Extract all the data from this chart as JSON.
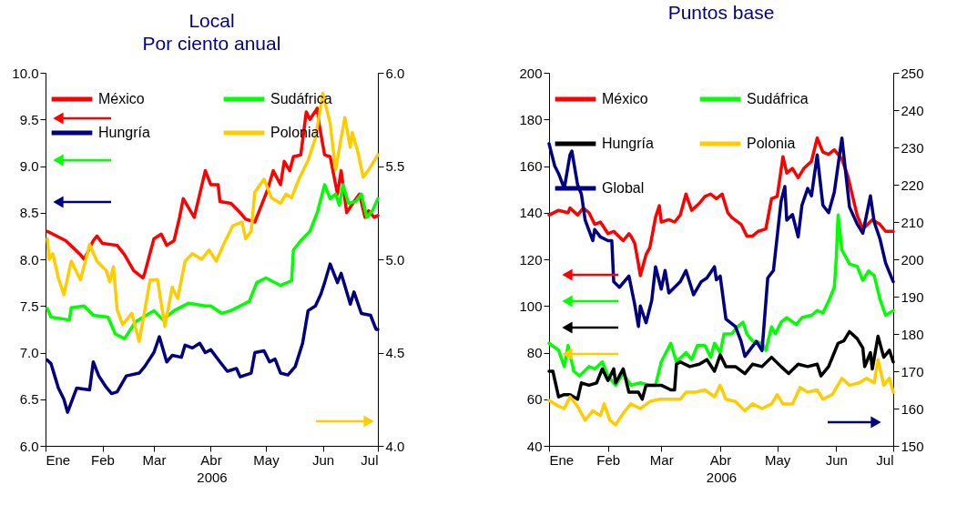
{
  "chart_data": [
    {
      "type": "line",
      "title": "Local",
      "subtitle": "Por ciento anual",
      "xlabel": "2006",
      "grid": false,
      "legend": "top left",
      "xlim": [
        "2006-01-01",
        "2006-07-01"
      ],
      "xticks": [
        {
          "value": "2006-01-01",
          "label": "Ene"
        },
        {
          "value": "2006-02-01",
          "label": "Feb"
        },
        {
          "value": "2006-03-01",
          "label": "Mar"
        },
        {
          "value": "2006-04-01",
          "label": "Abr"
        },
        {
          "value": "2006-05-01",
          "label": "May"
        },
        {
          "value": "2006-06-01",
          "label": "Jun"
        },
        {
          "value": "2006-07-01",
          "label": "Jul"
        }
      ],
      "ylim": [
        6,
        10
      ],
      "yticks": [
        {
          "value": 6,
          "label": "6.0"
        },
        6.5,
        {
          "value": 7,
          "label": "7.0"
        },
        7.5,
        {
          "value": 8,
          "label": "8.0"
        },
        8.5,
        {
          "value": 9,
          "label": "9.0"
        },
        9.5,
        {
          "value": 10,
          "label": "10.0"
        }
      ],
      "y2lim": [
        4,
        6
      ],
      "y2ticks": [
        {
          "value": 4,
          "label": "4.0"
        },
        4.5,
        {
          "value": 5,
          "label": "5.0"
        },
        5.5,
        {
          "value": 6,
          "label": "6.0"
        }
      ],
      "series": [
        {
          "name": "México",
          "color": "#ff0000",
          "x": [
            "2006-01-02",
            "2006-01-12",
            "2006-01-20",
            "2006-01-22",
            "2006-01-27",
            "2006-01-29",
            "2006-02-01",
            "2006-02-09",
            "2006-02-13",
            "2006-02-18",
            "2006-02-23",
            "2006-02-24",
            "2006-03-01",
            "2006-03-05",
            "2006-03-08",
            "2006-03-12",
            "2006-03-15",
            "2006-03-17",
            "2006-03-23",
            "2006-03-29",
            "2006-04-01",
            "2006-04-05",
            "2006-04-06",
            "2006-04-12",
            "2006-04-17",
            "2006-04-20",
            "2006-04-25",
            "2006-04-28",
            "2006-05-02",
            "2006-05-05",
            "2006-05-09",
            "2006-05-11",
            "2006-05-14",
            "2006-05-16",
            "2006-05-20",
            "2006-05-23",
            "2006-05-25",
            "2006-05-29",
            "2006-05-30",
            "2006-06-02",
            "2006-06-05",
            "2006-06-09",
            "2006-06-11",
            "2006-06-14",
            "2006-06-18",
            "2006-06-21",
            "2006-06-24",
            "2006-06-26",
            "2006-06-29",
            "2006-07-01"
          ],
          "values": [
            8.3,
            8.2,
            8.05,
            8.0,
            8.2,
            8.25,
            8.17,
            8.15,
            8.05,
            7.88,
            7.8,
            7.85,
            8.22,
            8.27,
            8.15,
            8.2,
            8.45,
            8.65,
            8.45,
            8.95,
            8.8,
            8.8,
            8.62,
            8.6,
            8.5,
            8.43,
            8.4,
            8.55,
            8.75,
            8.95,
            8.8,
            9.05,
            8.95,
            9.1,
            9.12,
            9.58,
            9.5,
            9.62,
            9.45,
            9.12,
            9.1,
            8.7,
            8.95,
            8.5,
            8.62,
            8.7,
            8.45,
            8.52,
            8.45,
            8.47
          ]
        },
        {
          "name": "Sudáfrica",
          "color": "#00ff00",
          "x": [
            "2006-01-02",
            "2006-01-04",
            "2006-01-14",
            "2006-01-15",
            "2006-01-22",
            "2006-01-27",
            "2006-02-04",
            "2006-02-08",
            "2006-02-13",
            "2006-02-19",
            "2006-03-01",
            "2006-03-06",
            "2006-03-12",
            "2006-03-20",
            "2006-03-29",
            "2006-04-01",
            "2006-04-07",
            "2006-04-12",
            "2006-04-22",
            "2006-04-26",
            "2006-05-01",
            "2006-05-09",
            "2006-05-15",
            "2006-05-16",
            "2006-05-20",
            "2006-05-25",
            "2006-05-29",
            "2006-06-02",
            "2006-06-05",
            "2006-06-08",
            "2006-06-10",
            "2006-06-12",
            "2006-06-15",
            "2006-06-19",
            "2006-06-22",
            "2006-06-25",
            "2006-06-28",
            "2006-07-01"
          ],
          "values": [
            7.47,
            7.38,
            7.35,
            7.48,
            7.5,
            7.4,
            7.38,
            7.2,
            7.15,
            7.33,
            7.45,
            7.35,
            7.45,
            7.53,
            7.5,
            7.5,
            7.42,
            7.45,
            7.55,
            7.75,
            7.8,
            7.72,
            7.77,
            8.1,
            8.2,
            8.3,
            8.5,
            8.8,
            8.65,
            8.7,
            8.58,
            8.8,
            8.6,
            8.62,
            8.7,
            8.45,
            8.52,
            8.65
          ]
        },
        {
          "name": "Hungría",
          "color": "#000080",
          "x": [
            "2006-01-02",
            "2006-01-04",
            "2006-01-06",
            "2006-01-08",
            "2006-01-11",
            "2006-01-13",
            "2006-01-18",
            "2006-01-25",
            "2006-01-27",
            "2006-01-30",
            "2006-02-03",
            "2006-02-06",
            "2006-02-09",
            "2006-02-14",
            "2006-02-21",
            "2006-02-24",
            "2006-03-01",
            "2006-03-04",
            "2006-03-08",
            "2006-03-11",
            "2006-03-16",
            "2006-03-18",
            "2006-03-22",
            "2006-03-26",
            "2006-03-29",
            "2006-04-01",
            "2006-04-06",
            "2006-04-10",
            "2006-04-15",
            "2006-04-17",
            "2006-04-23",
            "2006-04-25",
            "2006-04-30",
            "2006-05-03",
            "2006-05-06",
            "2006-05-09",
            "2006-05-13",
            "2006-05-17",
            "2006-05-21",
            "2006-05-24",
            "2006-05-28",
            "2006-05-31",
            "2006-06-02",
            "2006-06-05",
            "2006-06-09",
            "2006-06-11",
            "2006-06-16",
            "2006-06-18",
            "2006-06-22",
            "2006-06-27",
            "2006-06-30",
            "2006-07-01"
          ],
          "values": [
            6.92,
            6.88,
            6.75,
            6.62,
            6.5,
            6.36,
            6.62,
            6.6,
            6.9,
            6.75,
            6.63,
            6.56,
            6.58,
            6.75,
            6.78,
            6.85,
            7.0,
            7.17,
            6.9,
            6.97,
            6.95,
            7.08,
            7.05,
            7.1,
            7.0,
            7.03,
            6.9,
            6.8,
            6.83,
            6.74,
            6.78,
            7.0,
            7.02,
            6.9,
            6.93,
            6.78,
            6.76,
            6.85,
            7.1,
            7.45,
            7.5,
            7.63,
            7.75,
            7.95,
            7.75,
            7.85,
            7.52,
            7.65,
            7.42,
            7.4,
            7.25,
            7.25
          ]
        },
        {
          "name": "Polonia",
          "color": "#ffcc00",
          "axis": "y2",
          "x": [
            "2006-01-02",
            "2006-01-03",
            "2006-01-05",
            "2006-01-08",
            "2006-01-11",
            "2006-01-15",
            "2006-01-20",
            "2006-01-23",
            "2006-01-25",
            "2006-01-29",
            "2006-02-03",
            "2006-02-05",
            "2006-02-07",
            "2006-02-09",
            "2006-02-12",
            "2006-02-17",
            "2006-02-21",
            "2006-02-27",
            "2006-03-03",
            "2006-03-07",
            "2006-03-11",
            "2006-03-14",
            "2006-03-18",
            "2006-03-22",
            "2006-03-27",
            "2006-03-31",
            "2006-04-04",
            "2006-04-08",
            "2006-04-13",
            "2006-04-18",
            "2006-04-20",
            "2006-04-23",
            "2006-04-25",
            "2006-04-30",
            "2006-05-04",
            "2006-05-09",
            "2006-05-12",
            "2006-05-15",
            "2006-05-19",
            "2006-05-24",
            "2006-05-28",
            "2006-06-01",
            "2006-06-05",
            "2006-06-08",
            "2006-06-11",
            "2006-06-13",
            "2006-06-16",
            "2006-06-17",
            "2006-06-20",
            "2006-06-23",
            "2006-06-26",
            "2006-07-01"
          ],
          "values": [
            5.11,
            5.0,
            5.03,
            4.9,
            4.81,
            4.99,
            4.89,
            5.0,
            5.08,
            4.99,
            4.94,
            4.88,
            4.96,
            4.73,
            4.65,
            4.71,
            4.56,
            4.89,
            4.89,
            4.64,
            4.85,
            4.79,
            4.99,
            5.03,
            5.0,
            5.05,
            4.99,
            5.08,
            5.18,
            5.2,
            5.11,
            5.15,
            5.36,
            5.43,
            5.33,
            5.3,
            5.35,
            5.33,
            5.43,
            5.53,
            5.65,
            5.89,
            5.73,
            5.48,
            5.65,
            5.76,
            5.6,
            5.68,
            5.58,
            5.44,
            5.48,
            5.56
          ]
        }
      ]
    },
    {
      "type": "line",
      "title": "Puntos base",
      "xlabel": "2006",
      "grid": false,
      "legend": "top left",
      "xlim": [
        "2006-01-01",
        "2006-07-01"
      ],
      "xticks": [
        {
          "value": "2006-01-01",
          "label": "Ene"
        },
        {
          "value": "2006-02-01",
          "label": "Feb"
        },
        {
          "value": "2006-03-01",
          "label": "Mar"
        },
        {
          "value": "2006-04-01",
          "label": "Abr"
        },
        {
          "value": "2006-05-01",
          "label": "May"
        },
        {
          "value": "2006-06-01",
          "label": "Jun"
        },
        {
          "value": "2006-07-01",
          "label": "Jul"
        }
      ],
      "ylim": [
        40,
        200
      ],
      "yticks": [
        40,
        60,
        80,
        100,
        120,
        140,
        160,
        180,
        200
      ],
      "y2lim": [
        150,
        250
      ],
      "y2ticks": [
        150,
        160,
        170,
        180,
        190,
        200,
        210,
        220,
        230,
        240,
        250
      ],
      "series": [
        {
          "name": "México",
          "color": "#ff0000",
          "x": [
            "2006-01-01",
            "2006-01-06",
            "2006-01-11",
            "2006-01-12",
            "2006-01-16",
            "2006-01-19",
            "2006-01-22",
            "2006-01-25",
            "2006-01-28",
            "2006-02-01",
            "2006-02-04",
            "2006-02-09",
            "2006-02-12",
            "2006-02-13",
            "2006-02-15",
            "2006-02-17",
            "2006-02-18",
            "2006-02-21",
            "2006-02-23",
            "2006-02-26",
            "2006-02-28",
            "2006-03-01",
            "2006-03-05",
            "2006-03-08",
            "2006-03-11",
            "2006-03-14",
            "2006-03-17",
            "2006-03-21",
            "2006-03-24",
            "2006-03-27",
            "2006-03-30",
            "2006-04-02",
            "2006-04-05",
            "2006-04-07",
            "2006-04-12",
            "2006-04-15",
            "2006-04-18",
            "2006-04-21",
            "2006-04-25",
            "2006-04-28",
            "2006-05-01",
            "2006-05-04",
            "2006-05-06",
            "2006-05-09",
            "2006-05-12",
            "2006-05-15",
            "2006-05-19",
            "2006-05-22",
            "2006-05-25",
            "2006-05-28",
            "2006-05-31",
            "2006-06-04",
            "2006-06-07",
            "2006-06-12",
            "2006-06-15",
            "2006-06-20",
            "2006-06-24",
            "2006-06-27",
            "2006-07-01"
          ],
          "values": [
            139,
            141,
            140,
            142,
            139,
            142,
            140,
            135,
            136,
            131,
            132,
            128,
            131,
            130,
            127,
            118,
            113,
            122,
            125,
            138,
            143,
            136,
            137,
            136,
            139,
            148,
            141,
            144,
            147,
            148,
            146,
            148,
            140,
            138,
            135,
            130,
            130,
            132,
            133,
            146,
            147,
            164,
            157,
            159,
            155,
            159,
            162,
            172,
            166,
            165,
            167,
            163,
            156,
            139,
            133,
            137,
            135,
            132,
            132
          ]
        },
        {
          "name": "Sudáfrica",
          "color": "#00ff00",
          "x": [
            "2006-01-01",
            "2006-01-06",
            "2006-01-09",
            "2006-01-11",
            "2006-01-14",
            "2006-01-17",
            "2006-01-22",
            "2006-01-25",
            "2006-01-29",
            "2006-02-01",
            "2006-02-05",
            "2006-02-09",
            "2006-02-13",
            "2006-02-18",
            "2006-02-23",
            "2006-02-26",
            "2006-03-01",
            "2006-03-06",
            "2006-03-09",
            "2006-03-14",
            "2006-03-17",
            "2006-03-20",
            "2006-03-24",
            "2006-03-27",
            "2006-03-29",
            "2006-04-01",
            "2006-04-03",
            "2006-04-07",
            "2006-04-10",
            "2006-04-13",
            "2006-04-15",
            "2006-04-18",
            "2006-04-23",
            "2006-04-25",
            "2006-04-28",
            "2006-04-30",
            "2006-05-03",
            "2006-05-06",
            "2006-05-11",
            "2006-05-14",
            "2006-05-19",
            "2006-05-22",
            "2006-05-25",
            "2006-05-28",
            "2006-05-31",
            "2006-06-01",
            "2006-06-02",
            "2006-06-04",
            "2006-06-08",
            "2006-06-12",
            "2006-06-15",
            "2006-06-18",
            "2006-06-21",
            "2006-06-24",
            "2006-06-27",
            "2006-07-01"
          ],
          "values": [
            84,
            81,
            74,
            83,
            72,
            70,
            74,
            73,
            76,
            70,
            66,
            71,
            66,
            67,
            66,
            66,
            76,
            84,
            76,
            80,
            77,
            83,
            83,
            78,
            84,
            80,
            88,
            88,
            91,
            93,
            88,
            85,
            84,
            81,
            91,
            88,
            93,
            95,
            92,
            95,
            96,
            98,
            97,
            102,
            108,
            120,
            139,
            124,
            118,
            117,
            111,
            115,
            113,
            103,
            96,
            98
          ]
        },
        {
          "name": "Hungría",
          "color": "#000000",
          "x": [
            "2006-01-01",
            "2006-01-03",
            "2006-01-06",
            "2006-01-09",
            "2006-01-12",
            "2006-01-16",
            "2006-01-18",
            "2006-01-22",
            "2006-01-26",
            "2006-01-29",
            "2006-02-01",
            "2006-02-04",
            "2006-02-05",
            "2006-02-09",
            "2006-02-12",
            "2006-02-17",
            "2006-02-19",
            "2006-02-21",
            "2006-02-25",
            "2006-03-01",
            "2006-03-06",
            "2006-03-08",
            "2006-03-09",
            "2006-03-11",
            "2006-03-16",
            "2006-03-21",
            "2006-03-25",
            "2006-03-29",
            "2006-04-01",
            "2006-04-04",
            "2006-04-09",
            "2006-04-14",
            "2006-04-18",
            "2006-04-23",
            "2006-04-28",
            "2006-05-03",
            "2006-05-07",
            "2006-05-12",
            "2006-05-17",
            "2006-05-22",
            "2006-05-24",
            "2006-05-28",
            "2006-06-02",
            "2006-06-05",
            "2006-06-08",
            "2006-06-12",
            "2006-06-15",
            "2006-06-16",
            "2006-06-19",
            "2006-06-20",
            "2006-06-23",
            "2006-06-26",
            "2006-06-29",
            "2006-07-01"
          ],
          "values": [
            72,
            72,
            61,
            62,
            62,
            60,
            67,
            66,
            67,
            73,
            68,
            73,
            67,
            73,
            63,
            63,
            60,
            66,
            66,
            66,
            64,
            64,
            75,
            76,
            74,
            75,
            77,
            72,
            79,
            74,
            74,
            71,
            75,
            74,
            78,
            74,
            71,
            75,
            74,
            75,
            70,
            74,
            84,
            85,
            89,
            86,
            82,
            74,
            80,
            73,
            87,
            78,
            81,
            76
          ]
        },
        {
          "name": "Polonia",
          "color": "#ffcc00",
          "x": [
            "2006-01-01",
            "2006-01-06",
            "2006-01-09",
            "2006-01-12",
            "2006-01-16",
            "2006-01-20",
            "2006-01-24",
            "2006-01-28",
            "2006-01-30",
            "2006-02-02",
            "2006-02-05",
            "2006-02-09",
            "2006-02-13",
            "2006-02-18",
            "2006-02-23",
            "2006-02-28",
            "2006-03-06",
            "2006-03-11",
            "2006-03-14",
            "2006-03-19",
            "2006-03-24",
            "2006-03-29",
            "2006-04-01",
            "2006-04-04",
            "2006-04-09",
            "2006-04-14",
            "2006-04-18",
            "2006-04-23",
            "2006-04-28",
            "2006-05-01",
            "2006-05-04",
            "2006-05-09",
            "2006-05-13",
            "2006-05-17",
            "2006-05-22",
            "2006-05-25",
            "2006-05-30",
            "2006-06-04",
            "2006-06-08",
            "2006-06-13",
            "2006-06-17",
            "2006-06-21",
            "2006-06-23",
            "2006-06-26",
            "2006-06-29",
            "2006-07-01"
          ],
          "values": [
            59.5,
            57,
            56,
            61,
            57,
            51,
            55,
            53,
            58,
            51,
            49,
            54,
            58,
            56,
            59,
            60,
            60,
            60,
            63,
            63,
            64,
            61,
            66,
            60,
            59,
            55,
            58,
            56,
            58,
            62,
            58,
            58,
            65,
            63,
            64,
            60,
            62,
            69,
            66,
            67,
            69,
            67,
            77,
            66,
            69,
            63
          ]
        },
        {
          "name": "Global",
          "color": "#000080",
          "axis": "y2",
          "x": [
            "2006-01-01",
            "2006-01-04",
            "2006-01-06",
            "2006-01-09",
            "2006-01-12",
            "2006-01-13",
            "2006-01-16",
            "2006-01-18",
            "2006-01-20",
            "2006-01-24",
            "2006-01-25",
            "2006-01-28",
            "2006-02-01",
            "2006-02-03",
            "2006-02-04",
            "2006-02-07",
            "2006-02-12",
            "2006-02-15",
            "2006-02-17",
            "2006-02-18",
            "2006-02-21",
            "2006-02-24",
            "2006-02-26",
            "2006-03-01",
            "2006-03-03",
            "2006-03-05",
            "2006-03-11",
            "2006-03-14",
            "2006-03-18",
            "2006-03-22",
            "2006-03-25",
            "2006-03-29",
            "2006-03-30",
            "2006-04-01",
            "2006-04-04",
            "2006-04-09",
            "2006-04-12",
            "2006-04-14",
            "2006-04-17",
            "2006-04-20",
            "2006-04-23",
            "2006-04-26",
            "2006-04-29",
            "2006-05-03",
            "2006-05-05",
            "2006-05-06",
            "2006-05-09",
            "2006-05-12",
            "2006-05-14",
            "2006-05-17",
            "2006-05-19",
            "2006-05-22",
            "2006-05-25",
            "2006-05-28",
            "2006-05-31",
            "2006-06-04",
            "2006-06-08",
            "2006-06-12",
            "2006-06-15",
            "2006-06-19",
            "2006-06-21",
            "2006-06-24",
            "2006-06-27",
            "2006-07-01"
          ],
          "values": [
            231,
            225,
            223,
            219,
            228,
            229,
            220,
            217.5,
            210.5,
            205,
            208,
            206,
            205,
            205,
            194,
            192.5,
            195.5,
            188,
            182,
            187.5,
            183,
            189,
            198,
            192,
            197,
            191,
            194,
            197,
            190.5,
            194,
            195,
            198,
            194.5,
            195.5,
            184,
            182,
            178,
            174,
            176,
            178,
            175.5,
            195,
            197,
            215.5,
            219.5,
            210.5,
            212,
            206,
            214.5,
            219,
            217,
            228,
            214.5,
            212.5,
            218,
            232.5,
            214,
            209.5,
            207,
            217,
            210,
            205.5,
            199,
            194
          ]
        }
      ]
    }
  ]
}
